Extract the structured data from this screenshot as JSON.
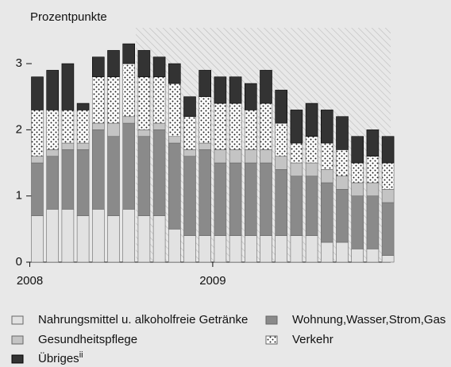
{
  "chart_data": {
    "type": "stacked_bar",
    "title": "Prozentpunkte",
    "categories": [
      "2008",
      null,
      null,
      null,
      null,
      null,
      null,
      null,
      null,
      null,
      null,
      null,
      "2009",
      null,
      null,
      null,
      null,
      null,
      null,
      null,
      null,
      null,
      null,
      null
    ],
    "series": [
      {
        "name": "Nahrungsmittel u. alkoholfreie Getränke",
        "color": "#e2e2e2",
        "values": [
          0.7,
          0.8,
          0.8,
          0.7,
          0.8,
          0.7,
          0.8,
          0.7,
          0.7,
          0.5,
          0.4,
          0.4,
          0.4,
          0.4,
          0.4,
          0.4,
          0.4,
          0.4,
          0.4,
          0.3,
          0.3,
          0.2,
          0.2,
          0.1
        ]
      },
      {
        "name": "Wohnung,Wasser,Strom,Gas",
        "color": "#8a8a8a",
        "values": [
          0.8,
          0.8,
          0.9,
          1.0,
          1.2,
          1.2,
          1.3,
          1.2,
          1.3,
          1.3,
          1.2,
          1.3,
          1.1,
          1.1,
          1.1,
          1.1,
          1.0,
          0.9,
          0.9,
          0.9,
          0.8,
          0.8,
          0.8,
          0.8
        ]
      },
      {
        "name": "Gesundheitspflege",
        "color": "#c4c4c4",
        "values": [
          0.1,
          0.1,
          0.1,
          0.1,
          0.1,
          0.2,
          0.1,
          0.1,
          0.1,
          0.1,
          0.1,
          0.1,
          0.2,
          0.2,
          0.2,
          0.2,
          0.2,
          0.2,
          0.2,
          0.2,
          0.2,
          0.2,
          0.2,
          0.2
        ]
      },
      {
        "name": "Verkehr",
        "color": "dots",
        "values": [
          0.7,
          0.6,
          0.5,
          0.5,
          0.7,
          0.7,
          0.8,
          0.8,
          0.7,
          0.8,
          0.5,
          0.7,
          0.7,
          0.7,
          0.6,
          0.7,
          0.5,
          0.3,
          0.4,
          0.4,
          0.4,
          0.3,
          0.4,
          0.4
        ]
      },
      {
        "name": "Übriges",
        "footnote_mark": "ii",
        "color": "#333333",
        "values": [
          0.5,
          0.6,
          0.7,
          0.1,
          0.3,
          0.4,
          0.3,
          0.4,
          0.3,
          0.3,
          0.3,
          0.4,
          0.4,
          0.4,
          0.4,
          0.5,
          0.5,
          0.5,
          0.5,
          0.5,
          0.5,
          0.4,
          0.4,
          0.4
        ]
      }
    ],
    "ylim": [
      0,
      3.3
    ],
    "yticks": [
      0,
      1,
      2,
      3
    ]
  }
}
